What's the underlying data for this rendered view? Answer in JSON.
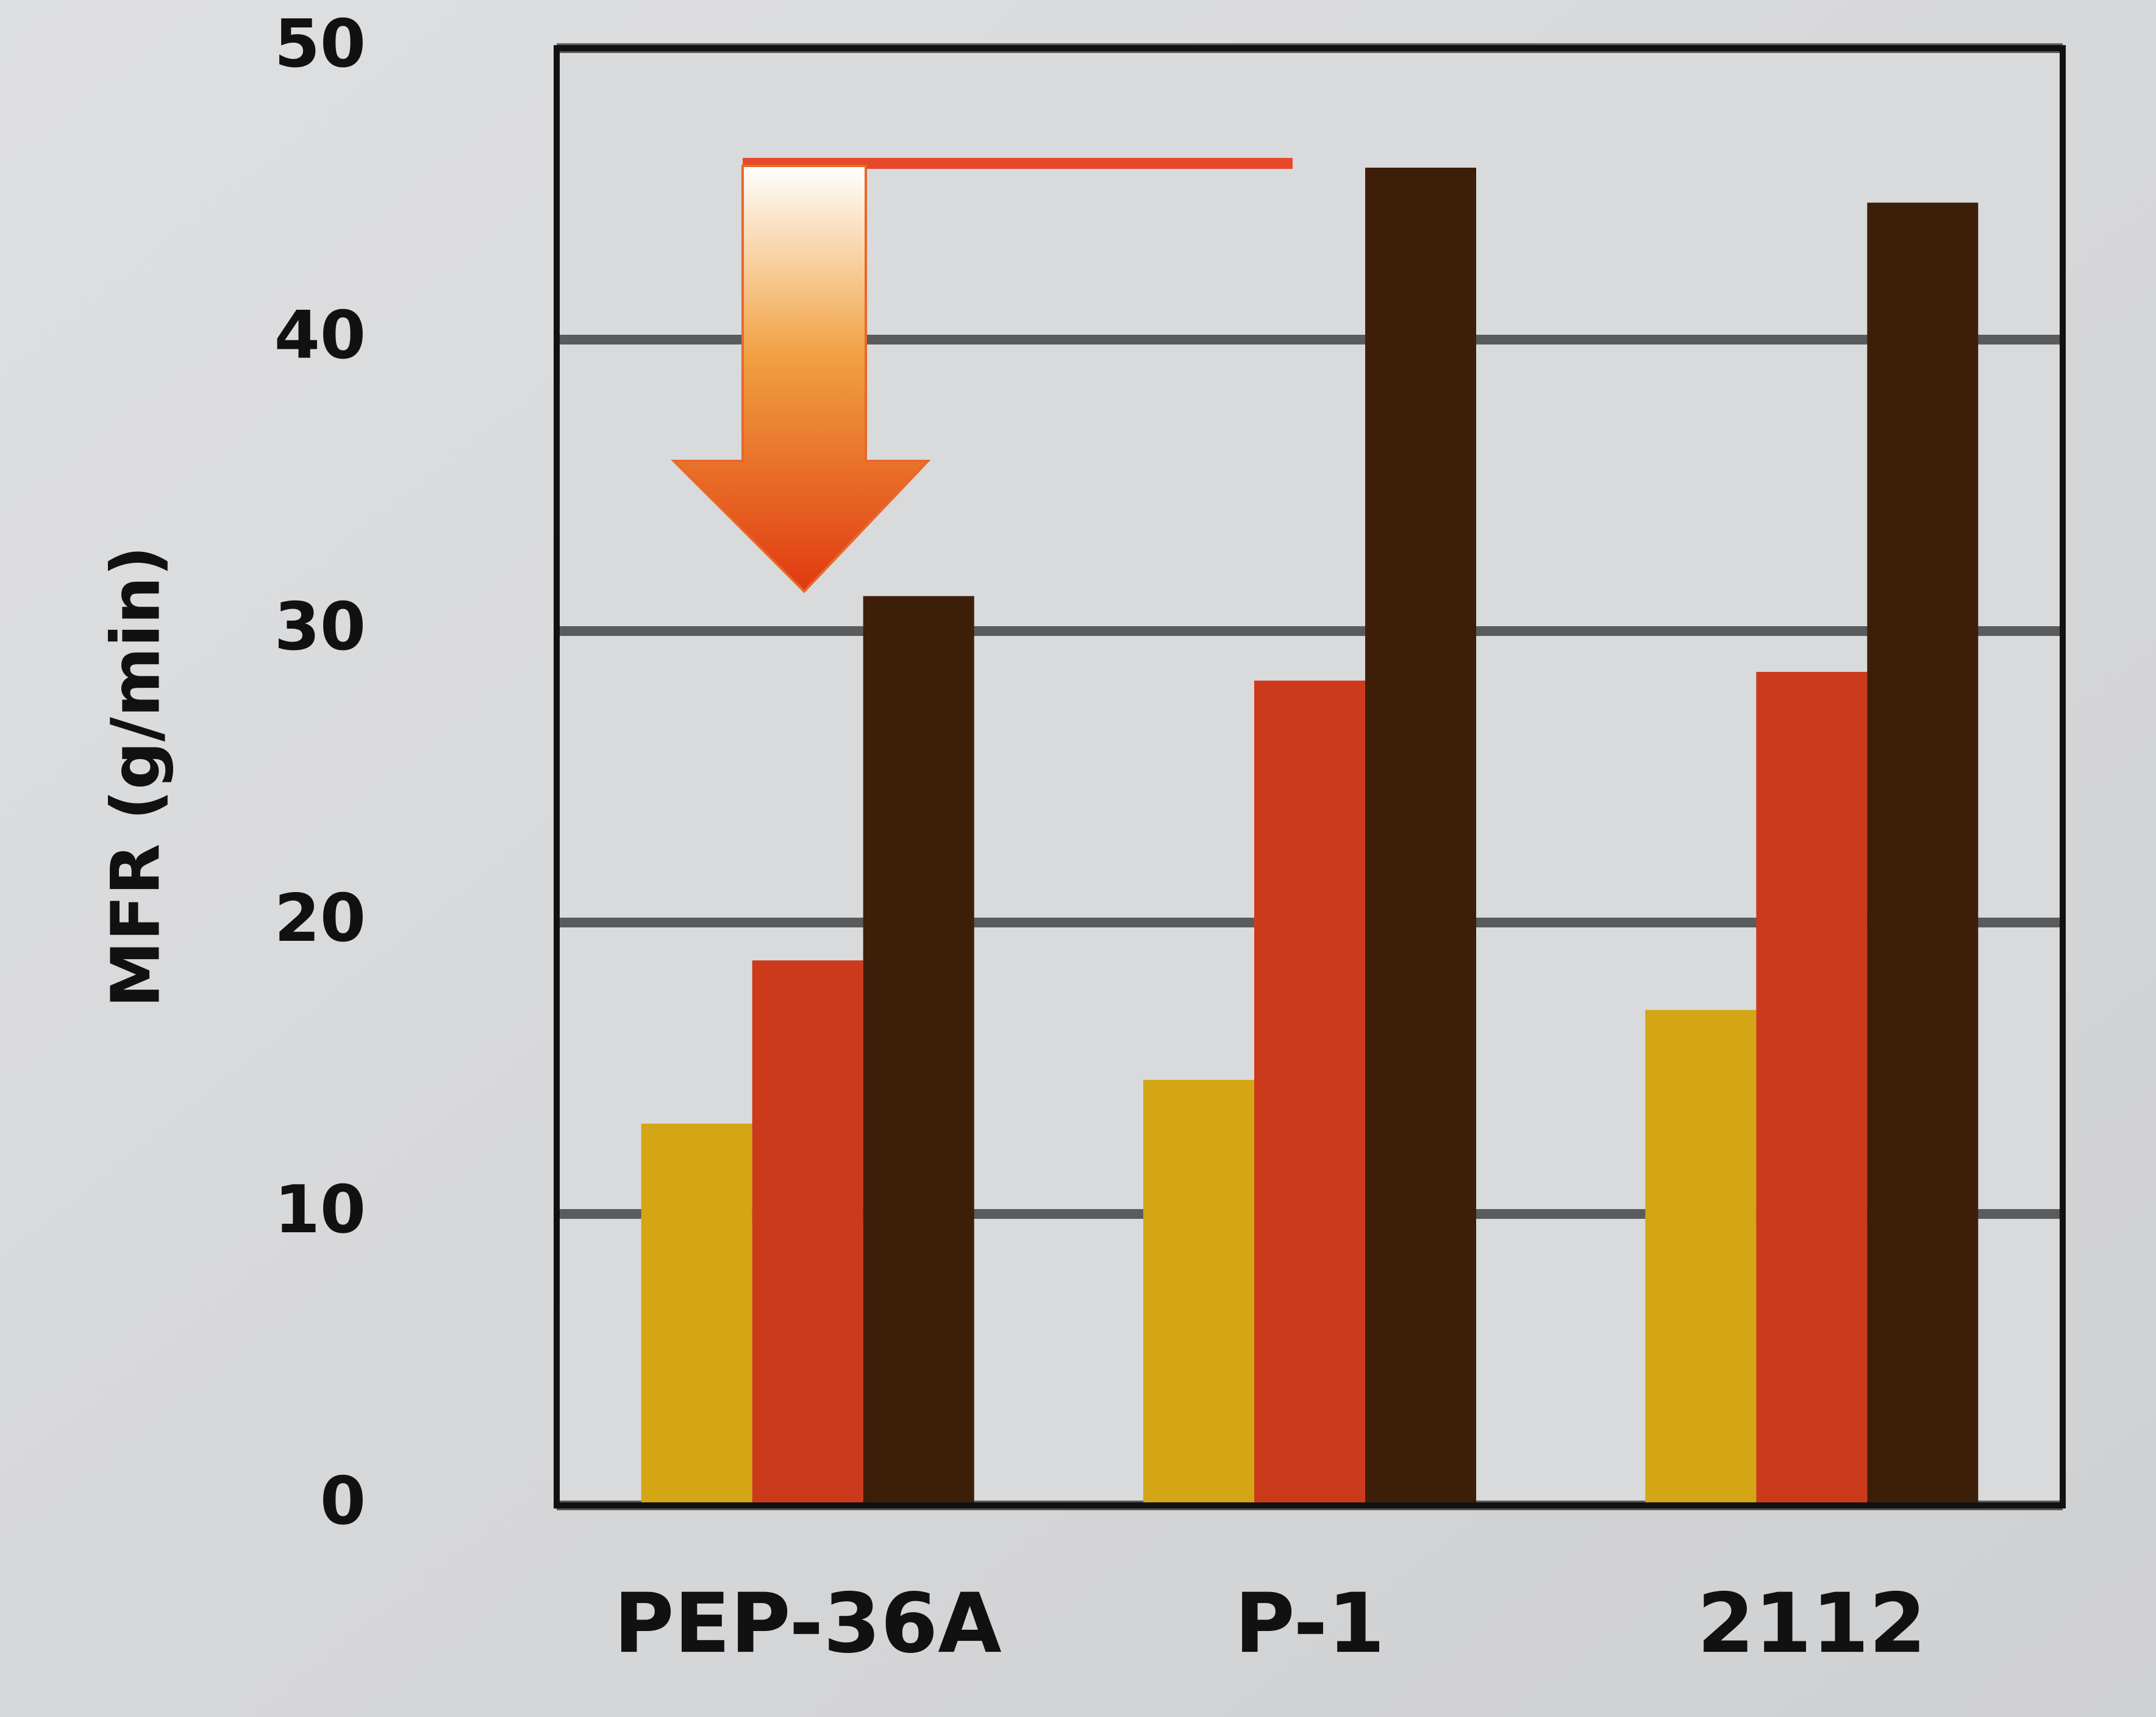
{
  "chart_data": {
    "type": "bar",
    "y_label": "MFR (g/min)",
    "categories": [
      "PEP-36A",
      "P-1",
      "2112"
    ],
    "series": [
      {
        "color": "#d4a514",
        "values": [
          13.1,
          14.6,
          17.0
        ]
      },
      {
        "color": "#cc3a1c",
        "values": [
          18.7,
          28.3,
          28.6
        ]
      },
      {
        "color": "#3d1e08",
        "values": [
          31.2,
          45.9,
          44.7
        ]
      }
    ],
    "ylim": [
      0,
      50
    ],
    "yticks": [
      0,
      10,
      20,
      30,
      40,
      50
    ],
    "grid": true
  }
}
